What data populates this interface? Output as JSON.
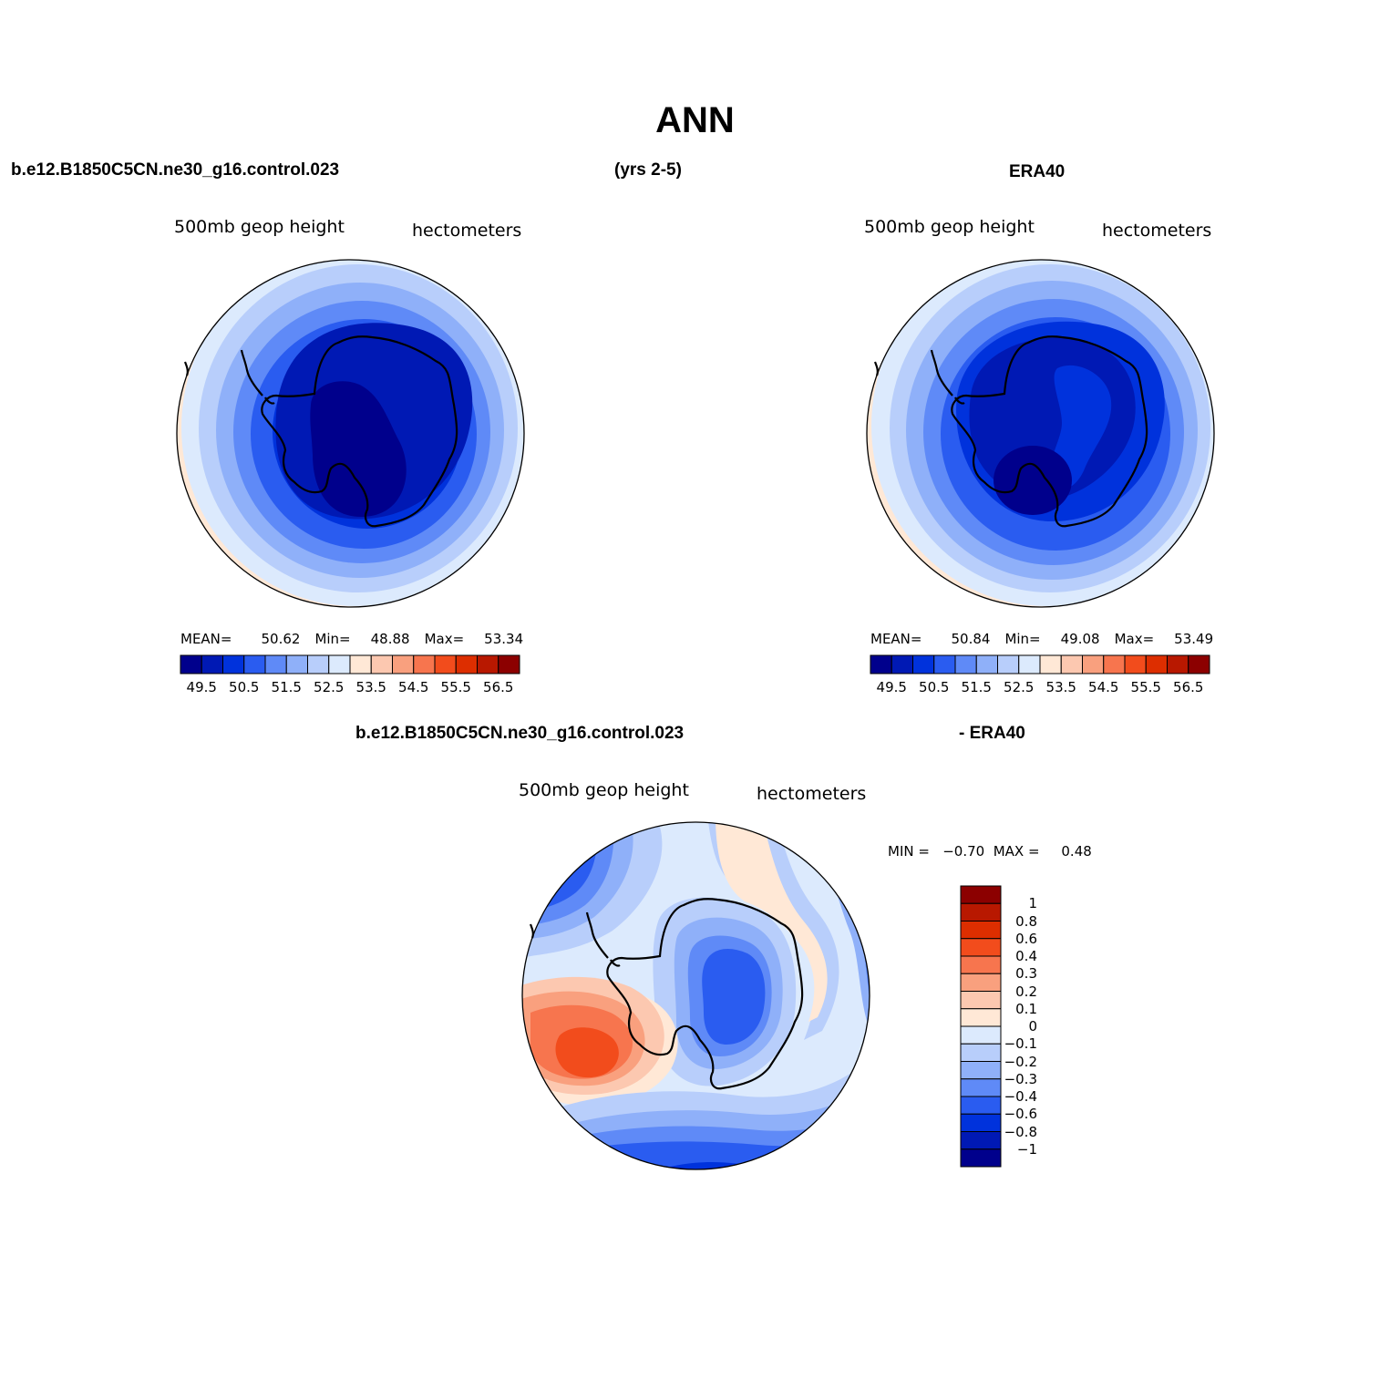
{
  "title": "ANN",
  "top_left": {
    "case_name": "b.e12.B1850C5CN.ne30_g16.control.023",
    "years": "(yrs 2-5)",
    "variable_label": "500mb  geop  height",
    "units_label": "hectometers",
    "stats": {
      "mean_label": "MEAN=",
      "mean": "50.62",
      "min_label": "Min=",
      "min": "48.88",
      "max_label": "Max=",
      "max": "53.34"
    }
  },
  "top_right": {
    "case_name": "ERA40",
    "variable_label": "500mb  geop  height",
    "units_label": "hectometers",
    "stats": {
      "mean_label": "MEAN=",
      "mean": "50.84",
      "min_label": "Min=",
      "min": "49.08",
      "max_label": "Max=",
      "max": "53.49"
    }
  },
  "bottom": {
    "case_name": "b.e12.B1850C5CN.ne30_g16.control.023",
    "diff_suffix": "- ERA40",
    "variable_label": "500mb  geop  height",
    "units_label": "hectometers",
    "minmax_text": "MIN =   −0.70  MAX =     0.48"
  },
  "abs_colorbar": {
    "labels": [
      "49.5",
      "50.5",
      "51.5",
      "52.5",
      "53.5",
      "54.5",
      "55.5",
      "56.5"
    ],
    "colors": [
      "#00008c",
      "#0019b4",
      "#0032dc",
      "#2a5cf0",
      "#5f8af7",
      "#8fb0f9",
      "#b8cefb",
      "#dceafd",
      "#ffe8d6",
      "#fcc8b0",
      "#f9a07e",
      "#f7754e",
      "#f24c1c",
      "#dd2e00",
      "#b81800",
      "#8c0000"
    ]
  },
  "diff_colorbar": {
    "labels": [
      "1",
      "0.8",
      "0.6",
      "0.4",
      "0.3",
      "0.2",
      "0.1",
      "0",
      "−0.1",
      "−0.2",
      "−0.3",
      "−0.4",
      "−0.6",
      "−0.8",
      "−1"
    ],
    "colors": [
      "#8c0000",
      "#b81800",
      "#dd2e00",
      "#f24c1c",
      "#f7754e",
      "#f9a07e",
      "#fcc8b0",
      "#ffe8d6",
      "#dceafd",
      "#b8cefb",
      "#8fb0f9",
      "#5f8af7",
      "#2a5cf0",
      "#0032dc",
      "#0019b4",
      "#00008c"
    ]
  }
}
